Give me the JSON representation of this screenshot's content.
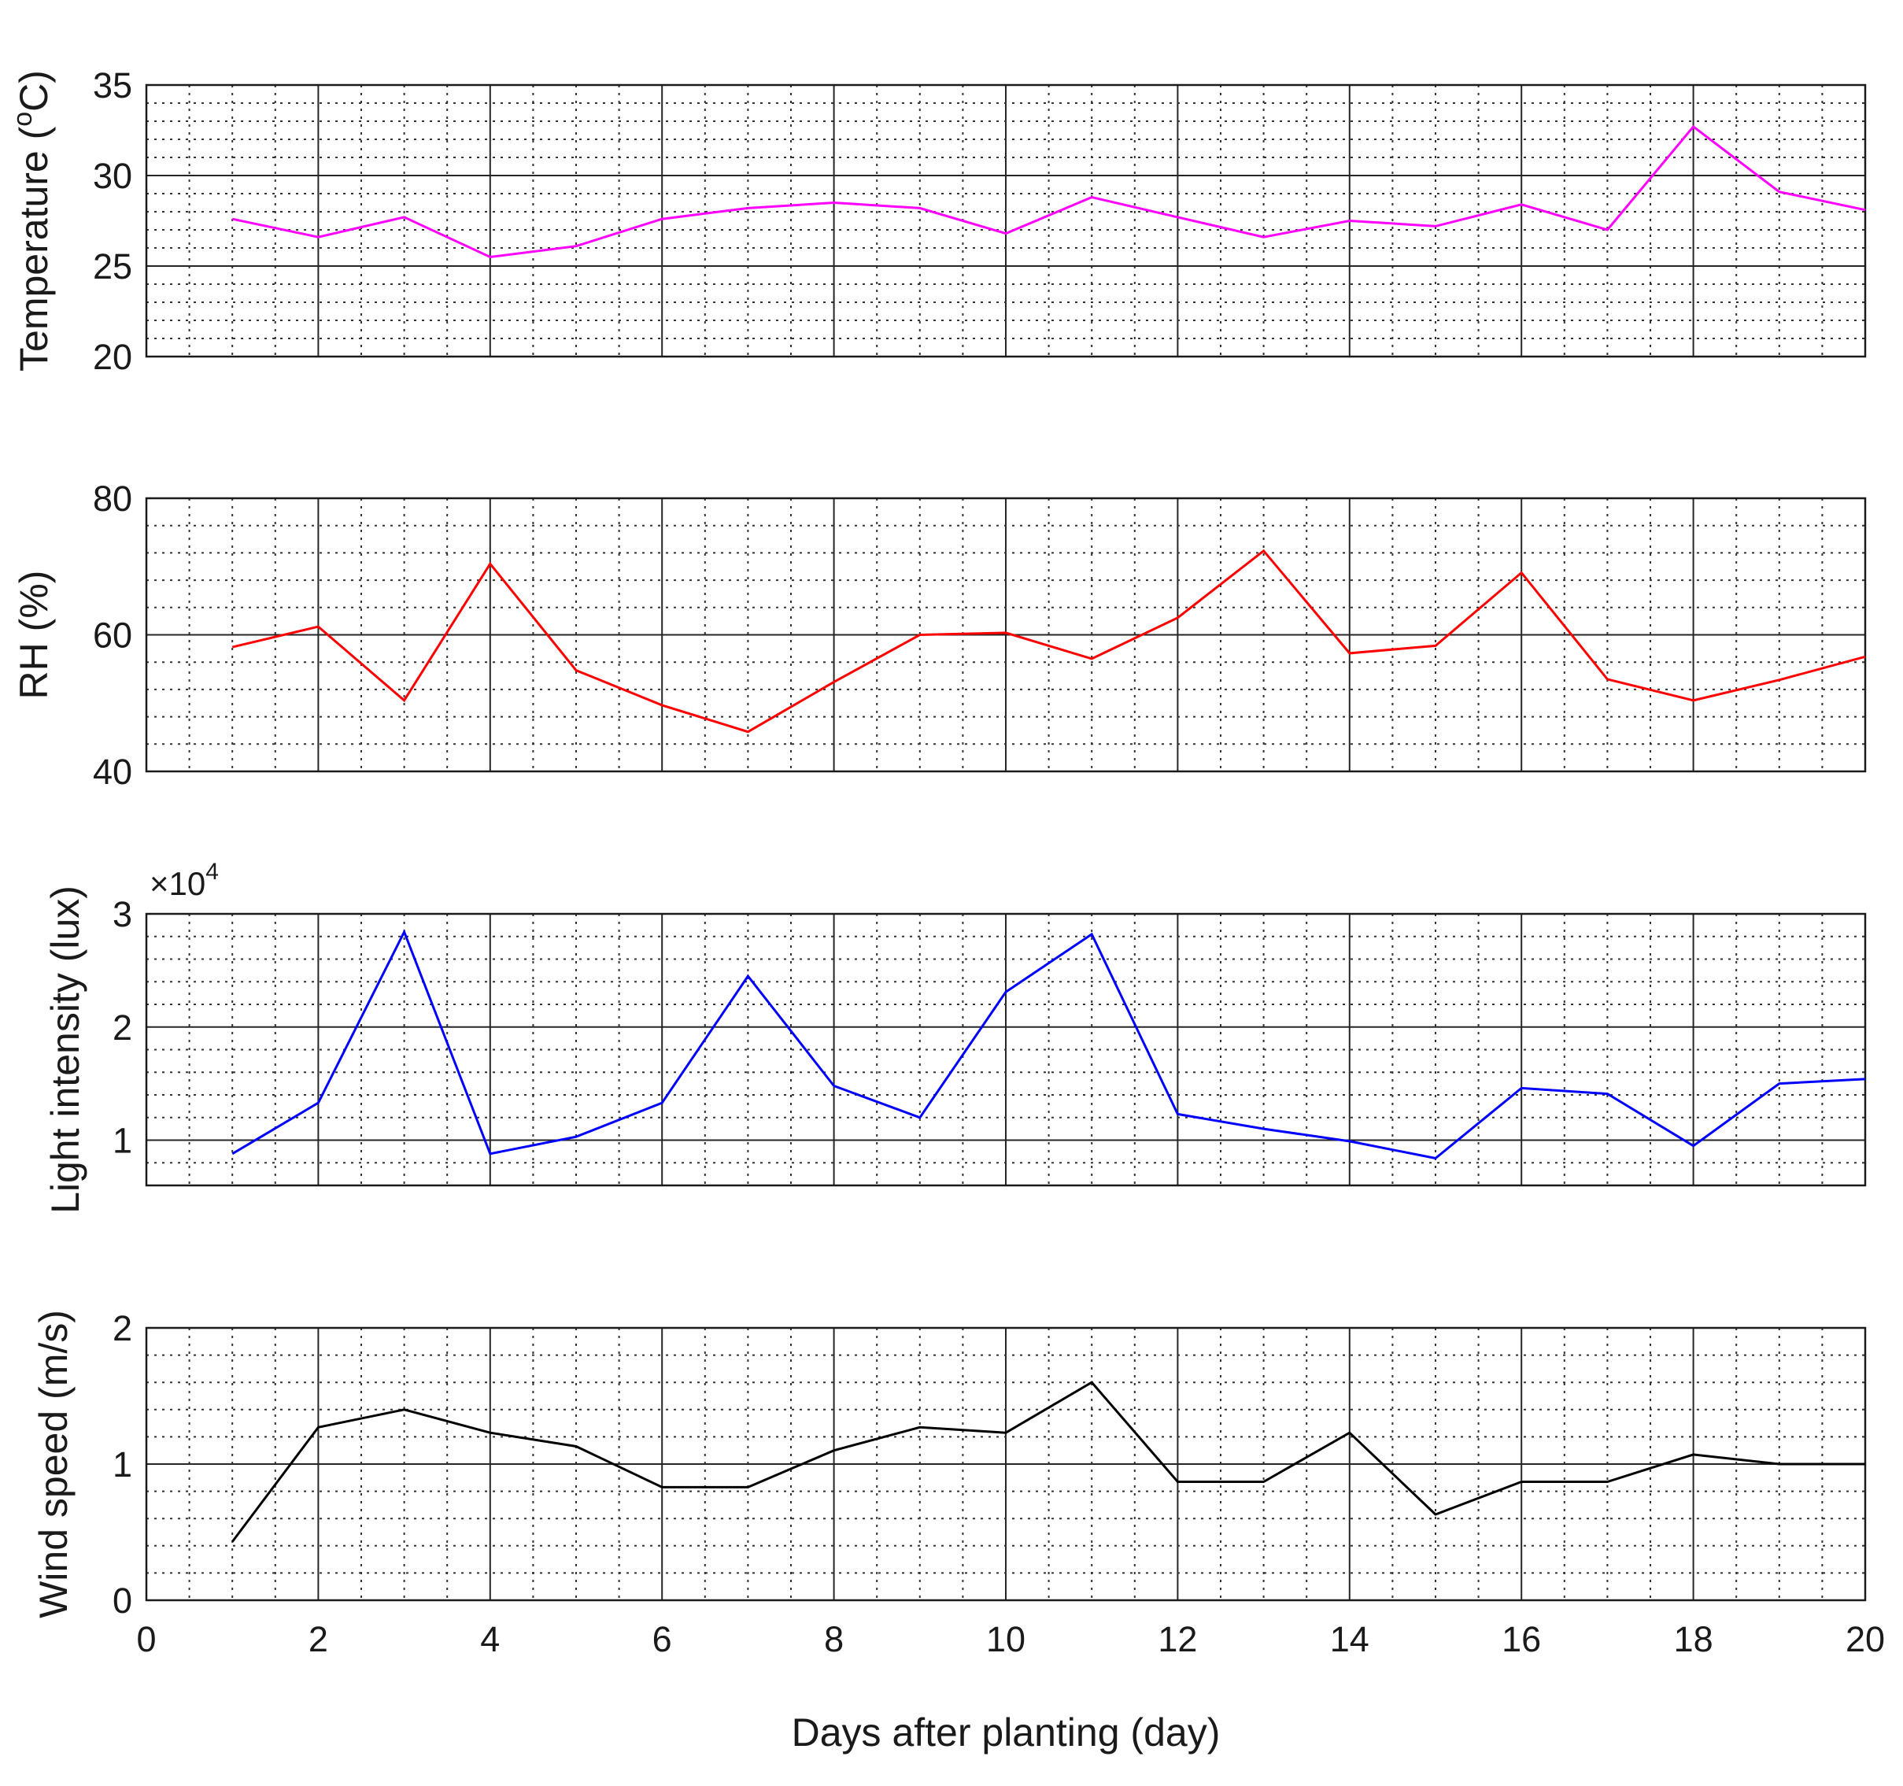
{
  "chart_data": [
    {
      "type": "line",
      "ylabel": "Temperature (°C)",
      "ylabel_parts": {
        "prefix": "Temperature (",
        "superscript": "o",
        "suffix": "C)"
      },
      "ylim": [
        20,
        35
      ],
      "yticks": [
        20,
        25,
        30,
        35
      ],
      "ytick_labels": [
        "20",
        "25",
        "30",
        "35"
      ],
      "xlim": [
        0,
        20
      ],
      "color": "#ff00ff",
      "series": [
        {
          "name": "Temperature",
          "x": [
            1,
            2,
            3,
            4,
            5,
            6,
            7,
            8,
            9,
            10,
            11,
            12,
            13,
            14,
            15,
            16,
            17,
            18,
            19,
            20
          ],
          "values": [
            27.6,
            26.6,
            27.7,
            25.5,
            26.1,
            27.6,
            28.2,
            28.5,
            28.2,
            26.8,
            28.8,
            27.7,
            26.6,
            27.5,
            27.2,
            28.4,
            27.0,
            32.7,
            29.1,
            28.1
          ]
        }
      ]
    },
    {
      "type": "line",
      "ylabel": "RH (%)",
      "ylim": [
        40,
        80
      ],
      "yticks": [
        40,
        60,
        80
      ],
      "ytick_labels": [
        "40",
        "60",
        "80"
      ],
      "xlim": [
        0,
        20
      ],
      "color": "#ff0000",
      "series": [
        {
          "name": "RH",
          "x": [
            1,
            2,
            3,
            4,
            5,
            6,
            7,
            8,
            9,
            10,
            11,
            12,
            13,
            14,
            15,
            16,
            17,
            18,
            19,
            20
          ],
          "values": [
            58.2,
            61.2,
            50.4,
            70.4,
            54.8,
            49.7,
            45.8,
            53.1,
            60.0,
            60.3,
            56.5,
            62.5,
            72.3,
            57.3,
            58.4,
            69.1,
            53.5,
            50.4,
            53.4,
            56.8
          ]
        }
      ]
    },
    {
      "type": "line",
      "ylabel": "Light intensity (lux)",
      "scale_label": {
        "base": "×10",
        "exponent": "4"
      },
      "ylim": [
        0.6,
        3.0
      ],
      "yticks": [
        1,
        2,
        3
      ],
      "ytick_labels": [
        "1",
        "2",
        "3"
      ],
      "xlim": [
        0,
        20
      ],
      "color": "#0000ff",
      "series": [
        {
          "name": "Light intensity",
          "x": [
            1,
            2,
            3,
            4,
            5,
            6,
            7,
            8,
            9,
            10,
            11,
            12,
            13,
            14,
            15,
            16,
            17,
            18,
            19,
            20
          ],
          "values": [
            0.88,
            1.33,
            2.84,
            0.88,
            1.03,
            1.33,
            2.45,
            1.48,
            1.2,
            2.31,
            2.82,
            1.23,
            1.1,
            0.99,
            0.84,
            1.46,
            1.41,
            0.95,
            1.5,
            1.54
          ]
        }
      ]
    },
    {
      "type": "line",
      "ylabel": "Wind speed (m/s)",
      "ylim": [
        0,
        2
      ],
      "yticks": [
        0,
        1,
        2
      ],
      "ytick_labels": [
        "0",
        "1",
        "2"
      ],
      "xlim": [
        0,
        20
      ],
      "xticks": [
        0,
        2,
        4,
        6,
        8,
        10,
        12,
        14,
        16,
        18,
        20
      ],
      "xtick_labels": [
        "0",
        "2",
        "4",
        "6",
        "8",
        "10",
        "12",
        "14",
        "16",
        "18",
        "20"
      ],
      "xlabel": "Days after planting (day)",
      "color": "#000000",
      "series": [
        {
          "name": "Wind speed",
          "x": [
            1,
            2,
            3,
            4,
            5,
            6,
            7,
            8,
            9,
            10,
            11,
            12,
            13,
            14,
            15,
            16,
            17,
            18,
            19,
            20
          ],
          "values": [
            0.43,
            1.27,
            1.4,
            1.23,
            1.13,
            0.83,
            0.83,
            1.1,
            1.27,
            1.23,
            1.6,
            0.87,
            0.87,
            1.23,
            0.63,
            0.87,
            0.87,
            1.07,
            1.0,
            1.0
          ]
        }
      ]
    }
  ]
}
